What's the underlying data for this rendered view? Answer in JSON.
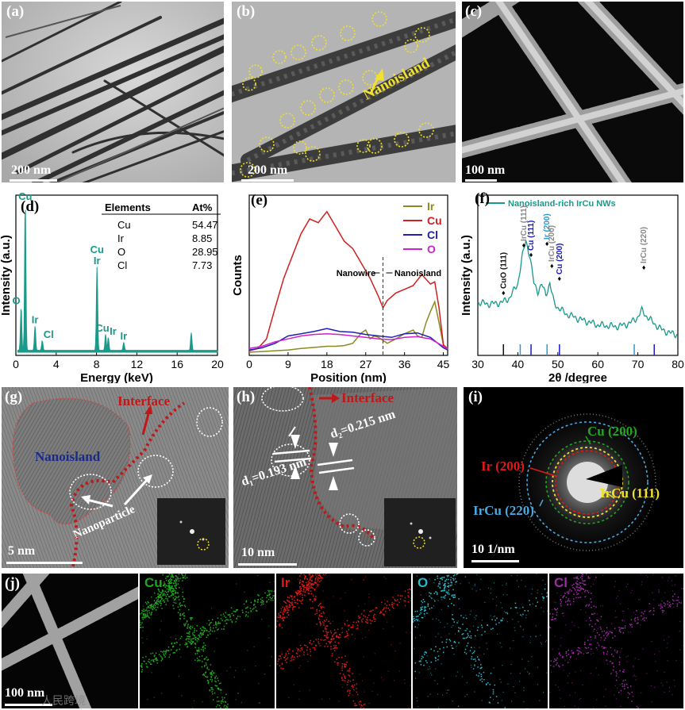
{
  "panels": {
    "a": {
      "label": "(a)",
      "scalebar": "200 nm"
    },
    "b": {
      "label": "(b)",
      "scalebar": "200 nm",
      "annotation": "Nanoisland"
    },
    "c": {
      "label": "(c)",
      "scalebar": "100 nm"
    },
    "d": {
      "label": "(d)"
    },
    "e": {
      "label": "(e)"
    },
    "f": {
      "label": "(f)"
    },
    "g": {
      "label": "(g)",
      "scalebar": "5 nm",
      "interface": "Interface",
      "nanoisland": "Nanoisland",
      "nanoparticle": "Nanoparticle"
    },
    "h": {
      "label": "(h)",
      "scalebar": "10 nm",
      "interface": "Interface",
      "d2": "d₂=0.215 nm",
      "d1": "d₁=0.193 nm"
    },
    "i": {
      "label": "(i)",
      "scalebar": "10 1/nm",
      "ring_ir": "Ir (200)",
      "ring_cu": "Cu (200)",
      "ring_ircu111": "IrCu (111)",
      "ring_ircu220": "IrCu (220)"
    },
    "j": {
      "label": "(j)",
      "scalebar": "100 nm",
      "maps": [
        "Cu",
        "Ir",
        "O",
        "Cl"
      ],
      "watermark": "人民跨境"
    }
  },
  "colors": {
    "cu_map": "#1fa81f",
    "ir_map": "#e01818",
    "o_map": "#2ab8c8",
    "cl_map": "#a02aa8",
    "teal": "#1a9a8a",
    "yellow": "#f0e030"
  },
  "chart_data": [
    {
      "id": "d",
      "type": "bar",
      "title": "",
      "xlabel": "Energy (keV)",
      "ylabel": "Intensity (a.u.)",
      "xlim": [
        0,
        20
      ],
      "xticks": [
        0,
        4,
        8,
        12,
        16,
        20
      ],
      "peaks": [
        {
          "x": 0.93,
          "h": 0.92,
          "label": "Cu"
        },
        {
          "x": 0.52,
          "h": 0.27,
          "label": "O"
        },
        {
          "x": 1.9,
          "h": 0.15,
          "label": "Ir"
        },
        {
          "x": 2.62,
          "h": 0.06,
          "label": "Cl"
        },
        {
          "x": 8.05,
          "h": 0.52,
          "label": "Cu\nIr"
        },
        {
          "x": 8.9,
          "h": 0.1,
          "label": "Cu"
        },
        {
          "x": 9.17,
          "h": 0.08,
          "label": "Ir"
        },
        {
          "x": 10.7,
          "h": 0.05,
          "label": "Ir"
        },
        {
          "x": 17.4,
          "h": 0.11,
          "label": ""
        }
      ],
      "table": {
        "headers": [
          "Elements",
          "At%"
        ],
        "rows": [
          [
            "Cu",
            "54.47"
          ],
          [
            "Ir",
            "8.85"
          ],
          [
            "O",
            "28.95"
          ],
          [
            "Cl",
            "7.73"
          ]
        ]
      }
    },
    {
      "id": "e",
      "type": "line",
      "xlabel": "Position (nm)",
      "ylabel": "Counts",
      "xlim": [
        0,
        46
      ],
      "xticks": [
        0,
        9,
        18,
        27,
        36,
        45
      ],
      "annotation_left": "Nanowire",
      "annotation_right": "Nanoisland",
      "divider_x": 31,
      "series": [
        {
          "name": "Ir",
          "color": "#8a8a20",
          "x": [
            0,
            3,
            6,
            9,
            12,
            14,
            16,
            18,
            20,
            22,
            24,
            26,
            27,
            28,
            29,
            30,
            31,
            32,
            34,
            36,
            38,
            39,
            40,
            41,
            42,
            43,
            44,
            45,
            46
          ],
          "values": [
            0,
            1,
            2,
            3,
            5,
            6,
            7,
            8,
            8,
            9,
            12,
            26,
            30,
            18,
            22,
            20,
            16,
            12,
            18,
            25,
            30,
            22,
            20,
            40,
            55,
            68,
            40,
            10,
            5
          ]
        },
        {
          "name": "Cu",
          "color": "#d02020",
          "x": [
            0,
            2,
            4,
            6,
            8,
            10,
            12,
            14,
            16,
            18,
            20,
            22,
            24,
            26,
            28,
            30,
            31,
            32,
            34,
            36,
            38,
            40,
            42,
            43,
            44,
            45,
            46
          ],
          "values": [
            2,
            5,
            18,
            60,
            100,
            130,
            160,
            180,
            175,
            190,
            170,
            150,
            140,
            120,
            100,
            75,
            60,
            70,
            80,
            85,
            90,
            105,
            92,
            95,
            60,
            10,
            4
          ]
        },
        {
          "name": "Cl",
          "color": "#2020b0",
          "x": [
            0,
            3,
            6,
            9,
            12,
            15,
            18,
            21,
            24,
            27,
            30,
            33,
            36,
            39,
            42,
            45,
            46
          ],
          "values": [
            3,
            6,
            12,
            22,
            25,
            28,
            32,
            28,
            27,
            24,
            22,
            20,
            25,
            26,
            20,
            6,
            3
          ]
        },
        {
          "name": "O",
          "color": "#d020d0",
          "x": [
            0,
            3,
            6,
            9,
            12,
            15,
            18,
            21,
            24,
            27,
            30,
            33,
            36,
            39,
            42,
            45,
            46
          ],
          "values": [
            5,
            8,
            14,
            18,
            22,
            24,
            25,
            24,
            22,
            20,
            18,
            17,
            20,
            21,
            18,
            8,
            4
          ]
        }
      ]
    },
    {
      "id": "f",
      "type": "line",
      "xlabel": "2θ /degree",
      "ylabel": "Intensity (a.u.)",
      "xlim": [
        30,
        80
      ],
      "xticks": [
        30,
        40,
        50,
        60,
        70,
        80
      ],
      "legend": "Nanoisland-rich IrCu NWs",
      "series": [
        {
          "name": "Nanoisland-rich IrCu NWs",
          "color": "#1a9a8a",
          "x": [
            30,
            33,
            36,
            38,
            40,
            41,
            42,
            43,
            44,
            45,
            46,
            47,
            48,
            49,
            50,
            52,
            55,
            60,
            65,
            68,
            70,
            71,
            72,
            74,
            76,
            78,
            80
          ],
          "values": [
            0.33,
            0.32,
            0.33,
            0.36,
            0.45,
            0.6,
            0.72,
            0.62,
            0.45,
            0.4,
            0.44,
            0.38,
            0.45,
            0.33,
            0.3,
            0.26,
            0.23,
            0.19,
            0.18,
            0.2,
            0.24,
            0.28,
            0.25,
            0.2,
            0.16,
            0.14,
            0.13
          ]
        }
      ],
      "peak_labels": [
        {
          "x": 36.4,
          "text": "CuO (111)",
          "color": "#111111"
        },
        {
          "x": 41.5,
          "text": "IrCu (111)",
          "color": "#888888"
        },
        {
          "x": 43.3,
          "text": "Cu (111)",
          "color": "#1a1ac0"
        },
        {
          "x": 47.3,
          "text": "Ir (200)",
          "color": "#2a9ad0"
        },
        {
          "x": 48.5,
          "text": "IrCu (200)",
          "color": "#888888"
        },
        {
          "x": 50.4,
          "text": "Cu (200)",
          "color": "#1a1ac0"
        },
        {
          "x": 71.5,
          "text": "IrCu (220)",
          "color": "#888888"
        }
      ],
      "reference_ticks": [
        {
          "x": 36.4,
          "color": "#111111"
        },
        {
          "x": 40.6,
          "color": "#2a9ad0"
        },
        {
          "x": 43.3,
          "color": "#1a1ac0"
        },
        {
          "x": 47.3,
          "color": "#2a9ad0"
        },
        {
          "x": 50.4,
          "color": "#1a1ac0"
        },
        {
          "x": 69.1,
          "color": "#2a9ad0"
        },
        {
          "x": 74.1,
          "color": "#1a1ac0"
        }
      ]
    }
  ]
}
